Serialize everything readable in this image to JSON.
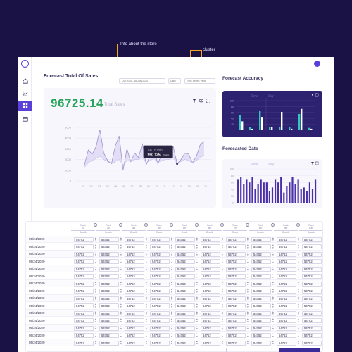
{
  "annotations": {
    "store_info": "Info about the store",
    "cluster": "cluster"
  },
  "sidebar": {
    "items": [
      {
        "icon": "home-icon",
        "active": false
      },
      {
        "icon": "chart-icon",
        "active": false
      },
      {
        "icon": "grid-icon",
        "active": true
      },
      {
        "icon": "calendar-icon",
        "active": false
      }
    ]
  },
  "header": {
    "title": "Forecast Total Of Sales",
    "date_range": "Jul 2020 - 16 July 2020",
    "granularity": "Daily",
    "series_view": "Time Series View"
  },
  "summary": {
    "total": "96725.14",
    "total_label": "Total Sales"
  },
  "chart_data": [
    {
      "type": "area",
      "title": "",
      "ylim": [
        0,
        5000
      ],
      "y_ticks": [
        "5000",
        "4000",
        "3000",
        "2000",
        "1000",
        "0"
      ],
      "x_ticks": [
        "01",
        "02",
        "03",
        "04",
        "05",
        "06",
        "07",
        "08",
        "09",
        "10",
        "11",
        "12",
        "13",
        "14",
        "15",
        "16"
      ],
      "series": [
        {
          "values": [
            1500,
            2900,
            2500,
            3200,
            4800,
            2600,
            1900,
            1600,
            3300,
            4200,
            1000,
            3000,
            1800,
            2600,
            2200,
            3500,
            1500,
            2400,
            3000,
            1600,
            2500,
            2500,
            2600,
            3200,
            1600,
            2000,
            2600,
            2500,
            1700,
            2300,
            3400,
            3700
          ]
        },
        {
          "values": [
            1300,
            1700,
            1900,
            2100,
            2300,
            2000,
            1800,
            1600,
            1800,
            2000,
            1500,
            1900,
            1800,
            2000,
            2000,
            2200,
            1700,
            1900,
            2100,
            1700,
            1900,
            2000,
            2000,
            2200,
            1600,
            1800,
            2000,
            1900,
            1700,
            1900,
            2200,
            2400
          ]
        }
      ],
      "tooltip": {
        "date": "July 12, 2020",
        "value": "950 125",
        "unit": "Sales"
      }
    },
    {
      "type": "bar",
      "title": "Forecast Accuracy",
      "series_labels": [
        "June",
        "July"
      ],
      "ylim": [
        0,
        100
      ],
      "y_ticks": [
        "100",
        "80",
        "60",
        "40",
        "20"
      ],
      "x": [
        1,
        2,
        3,
        4,
        5,
        6,
        7,
        8
      ],
      "series": [
        {
          "name": "teal",
          "values": [
            50,
            10,
            65,
            12,
            12,
            10,
            55,
            8
          ]
        },
        {
          "name": "white",
          "values": [
            30,
            5,
            45,
            10,
            62,
            5,
            72,
            5
          ]
        }
      ]
    },
    {
      "type": "bar",
      "title": "Forecasted Date",
      "series_labels": [
        "June",
        "July"
      ],
      "ylim": [
        0,
        100
      ],
      "y_ticks": [
        "100",
        "80",
        "60",
        "40",
        "20",
        "0"
      ],
      "values": [
        70,
        75,
        55,
        70,
        60,
        75,
        40,
        55,
        70,
        60,
        60,
        35,
        45,
        70,
        60,
        75,
        30,
        50,
        60,
        75,
        55,
        70,
        40,
        45,
        35,
        60,
        40,
        70
      ]
    }
  ],
  "table": {
    "columns": [
      {
        "l1": "Rank",
        "l2": "Ist",
        "l3": "Growth"
      },
      {
        "l1": "Rank",
        "l2": "2th",
        "l3": "Growth"
      },
      {
        "l1": "Rank",
        "l2": "3rd",
        "l3": "Growth"
      },
      {
        "l1": "Rank",
        "l2": "4th",
        "l3": "Crude"
      },
      {
        "l1": "Rank",
        "l2": "5th",
        "l3": "Crude"
      },
      {
        "l1": "Rank",
        "l2": "6th",
        "l3": "Growth"
      },
      {
        "l1": "Rank",
        "l2": "7th",
        "l3": "Crude"
      },
      {
        "l1": "Rank",
        "l2": "8th",
        "l3": "Growth"
      },
      {
        "l1": "Rank",
        "l2": "9th",
        "l3": "Growth"
      },
      {
        "l1": "Rank",
        "l2": "10th",
        "l3": "Growth"
      }
    ],
    "rows": [
      {
        "date": "05/24/2020",
        "cells": [
          "54752",
          "54752",
          "54752",
          "54752",
          "54752",
          "54752",
          "54752",
          "54752",
          "54752",
          "54752"
        ]
      },
      {
        "date": "05/24/2020",
        "cells": [
          "54752",
          "54752",
          "54752",
          "54752",
          "54752",
          "54752",
          "54752",
          "54752",
          "54752",
          "54752"
        ]
      },
      {
        "date": "05/24/2020",
        "cells": [
          "54752",
          "54752",
          "54752",
          "54752",
          "54752",
          "54752",
          "54752",
          "54752",
          "54752",
          "54752"
        ]
      },
      {
        "date": "05/24/2020",
        "cells": [
          "54752",
          "54752",
          "54752",
          "54752",
          "54752",
          "54752",
          "54752",
          "54752",
          "54752",
          "54752"
        ]
      },
      {
        "date": "05/24/2020",
        "cells": [
          "54752",
          "54752",
          "54752",
          "54752",
          "54752",
          "54752",
          "54752",
          "54752",
          "54752",
          "54752"
        ]
      },
      {
        "date": "05/24/2020",
        "cells": [
          "54752",
          "54752",
          "54752",
          "54752",
          "54752",
          "54752",
          "54752",
          "54752",
          "54752",
          "54752"
        ]
      },
      {
        "date": "05/24/2020",
        "cells": [
          "54752",
          "54752",
          "54752",
          "54752",
          "54752",
          "54752",
          "54752",
          "54752",
          "54752",
          "54752"
        ]
      },
      {
        "date": "05/24/2020",
        "cells": [
          "54752",
          "54752",
          "54752",
          "54752",
          "54752",
          "54752",
          "54752",
          "54752",
          "54752",
          "54752"
        ]
      },
      {
        "date": "05/24/2020",
        "cells": [
          "54752",
          "54752",
          "54752",
          "54752",
          "54752",
          "54752",
          "54752",
          "54752",
          "54752",
          "54752"
        ]
      },
      {
        "date": "05/24/2020",
        "cells": [
          "54752",
          "54752",
          "54752",
          "54752",
          "54752",
          "54752",
          "54752",
          "54752",
          "54752",
          "54752"
        ]
      },
      {
        "date": "05/24/2020",
        "cells": [
          "54752",
          "54752",
          "54752",
          "54752",
          "54752",
          "54752",
          "54752",
          "54752",
          "54752",
          "54752"
        ]
      },
      {
        "date": "05/24/2020",
        "cells": [
          "54752",
          "54752",
          "54752",
          "54752",
          "54752",
          "54752",
          "54752",
          "54752",
          "54752",
          "54752"
        ]
      },
      {
        "date": "05/24/2020",
        "cells": [
          "54752",
          "54752",
          "54752",
          "54752",
          "54752",
          "54752",
          "54752",
          "54752",
          "54752",
          "54752"
        ]
      },
      {
        "date": "05/24/2020",
        "cells": [
          "54752",
          "54752",
          "54752",
          "54752",
          "54752",
          "54752",
          "54752",
          "54752",
          "54752",
          "54752"
        ]
      },
      {
        "date": "05/24/2020",
        "cells": [
          "54752",
          "54752",
          "54752",
          "54752",
          "54752",
          "54752",
          "54752",
          "54752",
          "54752",
          "54752"
        ]
      }
    ]
  },
  "colors": {
    "background": "#1a1245",
    "accent": "#5a3fd8",
    "green": "#27a35a",
    "annotation": "#f5a623",
    "teal": "#34c3c0"
  }
}
